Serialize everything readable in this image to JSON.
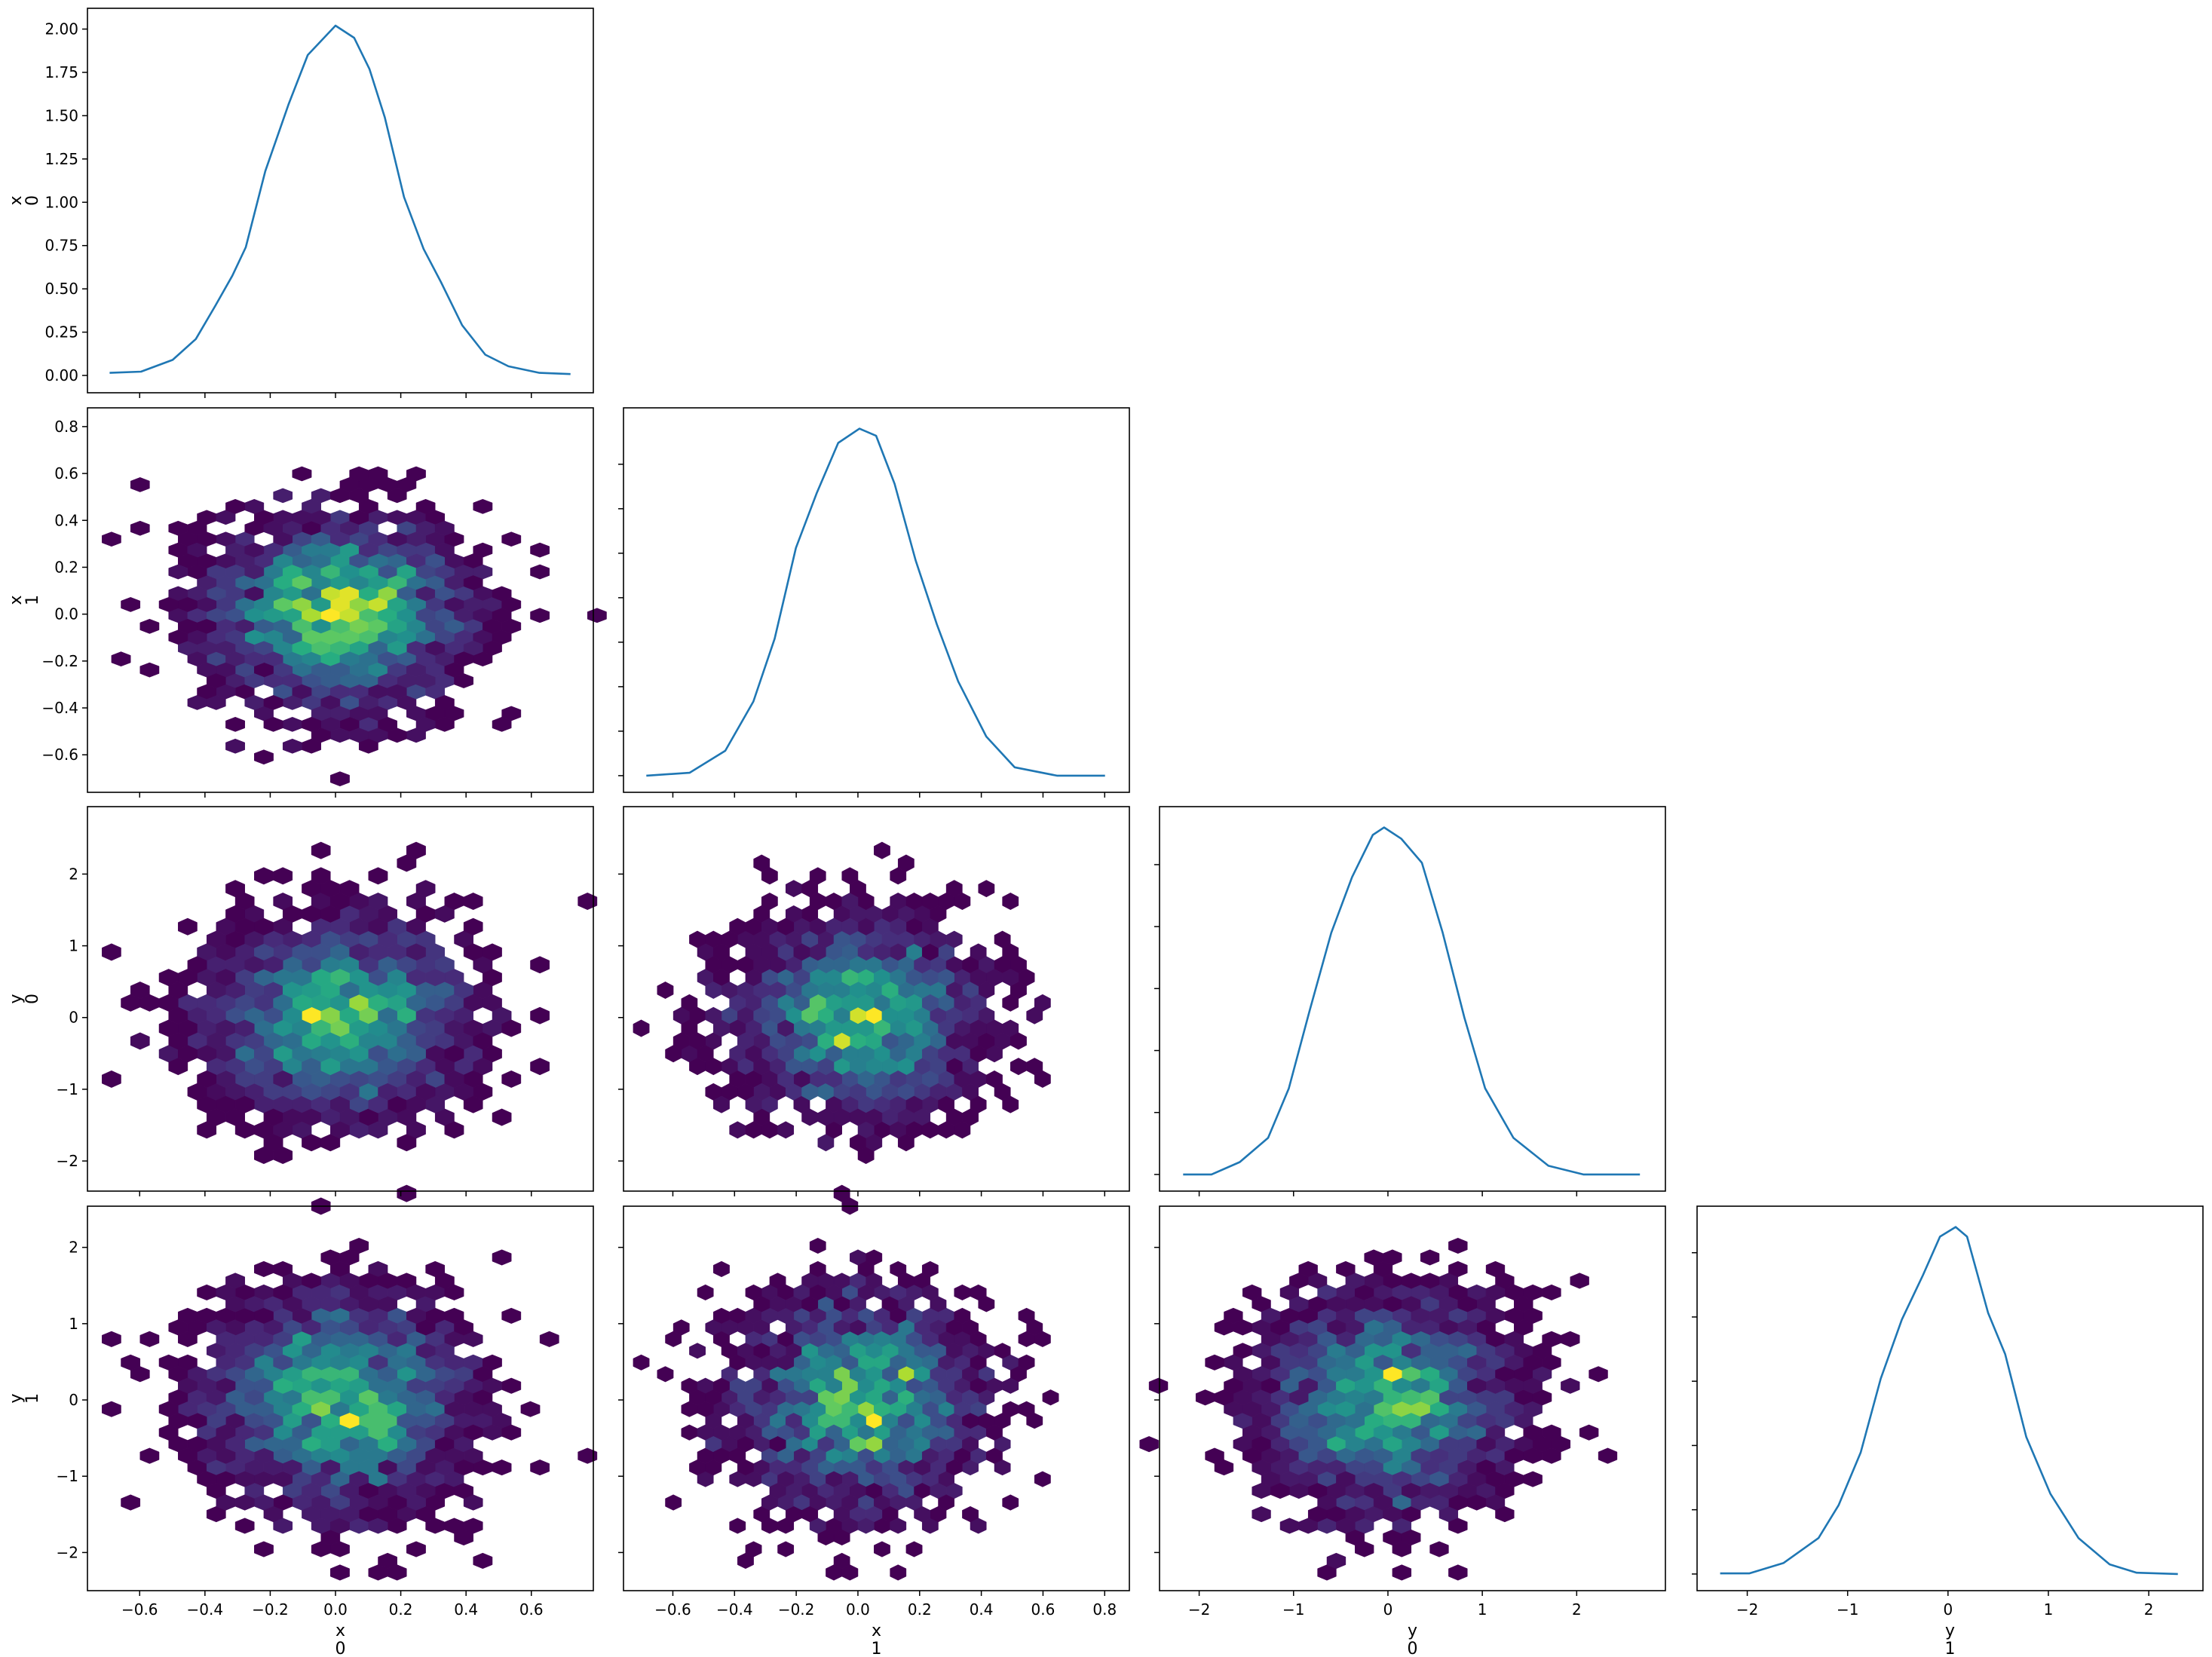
{
  "chart_data": {
    "type": "pair-plot",
    "diagonal_kind": "line",
    "offdiagonal_kind": "hexbin",
    "colormap": "viridis",
    "line_color": "#1f77b4",
    "variables": [
      {
        "name": "x",
        "coord": "0",
        "lim": [
          -0.76,
          0.79
        ],
        "ticks": [
          -0.6,
          -0.4,
          -0.2,
          0.0,
          0.2,
          0.4,
          0.6
        ],
        "tick_labels": [
          "−0.6",
          "−0.4",
          "−0.2",
          "0.0",
          "0.2",
          "0.4",
          "0.6"
        ],
        "mean": 0.0,
        "sd": 0.2
      },
      {
        "name": "x",
        "coord": "1",
        "lim": [
          -0.76,
          0.88
        ],
        "ticks": [
          -0.6,
          -0.4,
          -0.2,
          0.0,
          0.2,
          0.4,
          0.6,
          0.8
        ],
        "tick_labels": [
          "−0.6",
          "−0.4",
          "−0.2",
          "0.0",
          "0.2",
          "0.4",
          "0.6",
          "0.8"
        ],
        "mean": 0.0,
        "sd": 0.2
      },
      {
        "name": "y",
        "coord": "0",
        "lim": [
          -2.42,
          2.94
        ],
        "ticks": [
          -2,
          -1,
          0,
          1,
          2
        ],
        "tick_labels": [
          "−2",
          "−1",
          "0",
          "1",
          "2"
        ],
        "mean": 0.0,
        "sd": 0.7
      },
      {
        "name": "y",
        "coord": "1",
        "lim": [
          -2.5,
          2.54
        ],
        "ticks": [
          -2,
          -1,
          0,
          1,
          2
        ],
        "tick_labels": [
          "−2",
          "−1",
          "0",
          "1",
          "2"
        ],
        "mean": 0.0,
        "sd": 0.7
      }
    ],
    "first_kde_yaxis": {
      "lim": [
        -0.1,
        2.12
      ],
      "ticks": [
        0,
        0.25,
        0.5,
        0.75,
        1.0,
        1.25,
        1.5,
        1.75,
        2.0
      ],
      "tick_labels": [
        "0.00",
        "0.25",
        "0.50",
        "0.75",
        "1.00",
        "1.25",
        "1.50",
        "1.75",
        "2.00"
      ]
    },
    "kde": [
      {
        "x": [
          -0.692,
          -0.596,
          -0.499,
          -0.428,
          -0.369,
          -0.316,
          -0.275,
          -0.215,
          -0.144,
          -0.085,
          0.0,
          0.057,
          0.104,
          0.151,
          0.21,
          0.27,
          0.323,
          0.388,
          0.459,
          0.53,
          0.625,
          0.72
        ],
        "y": [
          0.015,
          0.022,
          0.09,
          0.21,
          0.4,
          0.576,
          0.74,
          1.18,
          1.565,
          1.85,
          2.02,
          1.95,
          1.77,
          1.49,
          1.03,
          0.73,
          0.54,
          0.29,
          0.12,
          0.053,
          0.015,
          0.008
        ]
      },
      {
        "x": [
          -0.686,
          -0.546,
          -0.43,
          -0.339,
          -0.27,
          -0.201,
          -0.133,
          -0.064,
          0.005,
          0.059,
          0.119,
          0.187,
          0.256,
          0.325,
          0.416,
          0.508,
          0.645,
          0.801
        ],
        "y": [
          0,
          0.016,
          0.14,
          0.417,
          0.77,
          1.28,
          1.59,
          1.87,
          1.95,
          1.91,
          1.64,
          1.21,
          0.85,
          0.53,
          0.22,
          0.047,
          0,
          0
        ]
      },
      {
        "x": [
          -2.17,
          -1.87,
          -1.57,
          -1.27,
          -1.05,
          -0.83,
          -0.6,
          -0.38,
          -0.16,
          -0.04,
          0.14,
          0.36,
          0.58,
          0.81,
          1.03,
          1.33,
          1.7,
          2.07,
          2.67
        ],
        "y": [
          0,
          0,
          0.02,
          0.059,
          0.139,
          0.264,
          0.39,
          0.48,
          0.548,
          0.56,
          0.542,
          0.503,
          0.39,
          0.253,
          0.139,
          0.059,
          0.014,
          0,
          0
        ]
      },
      {
        "x": [
          -2.27,
          -1.98,
          -1.64,
          -1.29,
          -1.09,
          -0.87,
          -0.67,
          -0.46,
          -0.25,
          -0.08,
          0.076,
          0.19,
          0.4,
          0.57,
          0.78,
          1.02,
          1.3,
          1.61,
          1.88,
          2.29
        ],
        "y": [
          0.001,
          0.001,
          0.017,
          0.056,
          0.107,
          0.189,
          0.304,
          0.396,
          0.465,
          0.525,
          0.54,
          0.525,
          0.406,
          0.342,
          0.213,
          0.125,
          0.056,
          0.015,
          0.002,
          0
        ]
      }
    ],
    "hexbin_gridsize": 25
  }
}
